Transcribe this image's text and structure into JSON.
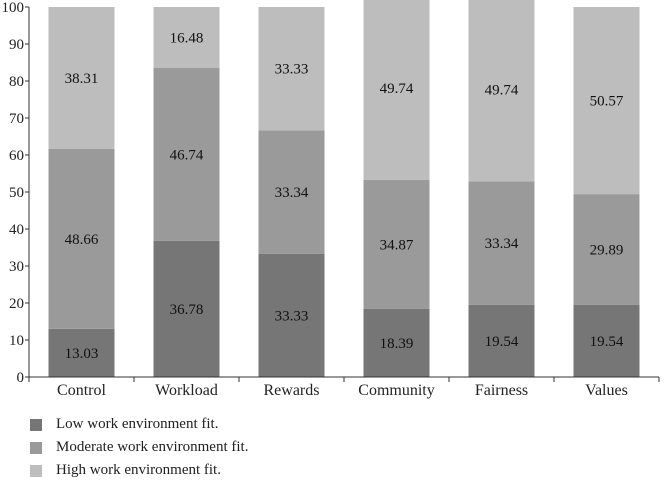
{
  "chart_data": {
    "type": "bar",
    "stacked": true,
    "categories": [
      "Control",
      "Workload",
      "Rewards",
      "Community",
      "Fairness",
      "Values"
    ],
    "series": [
      {
        "name": "Low work environment fit.",
        "color": "#767676",
        "values": [
          13.03,
          36.78,
          33.33,
          18.39,
          19.54,
          19.54
        ]
      },
      {
        "name": "Moderate work environment fit.",
        "color": "#9a9a9a",
        "values": [
          48.66,
          46.74,
          33.34,
          34.87,
          33.34,
          29.89
        ]
      },
      {
        "name": "High work environment fit.",
        "color": "#bdbdbd",
        "values": [
          38.31,
          16.48,
          33.33,
          49.74,
          49.74,
          50.57
        ]
      }
    ],
    "value_labels": [
      [
        "13.03",
        "36.78",
        "33.33",
        "18.39",
        "19.54",
        "19.54"
      ],
      [
        "48.66",
        "46.74",
        "33.34",
        "34.87",
        "33.34",
        "29.89"
      ],
      [
        "38.31",
        "16.48",
        "33.33",
        "49.74",
        "49.74",
        "50.57"
      ]
    ],
    "yticks": [
      "0",
      "10",
      "20",
      "30",
      "40",
      "50",
      "60",
      "70",
      "80",
      "90",
      "100"
    ],
    "ylim": [
      0,
      100
    ],
    "grid": false,
    "legend_position": "bottom-left"
  }
}
